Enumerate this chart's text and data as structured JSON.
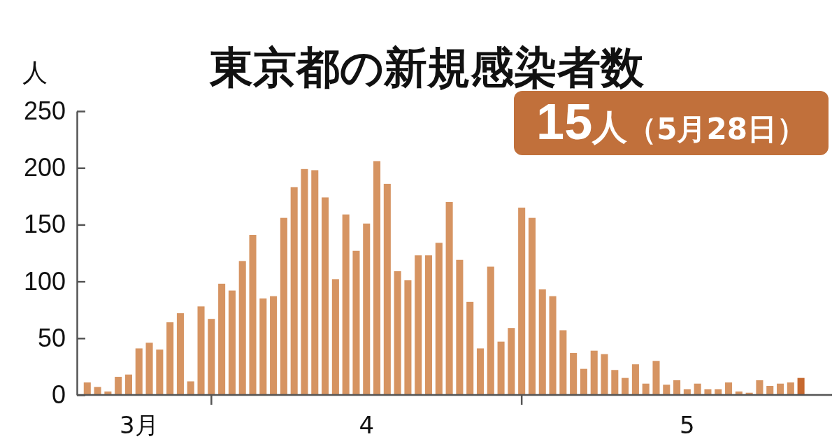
{
  "chart_data": {
    "type": "bar",
    "title": "東京都の新規感染者数",
    "ylabel": "人",
    "x": [
      "--03-20",
      "--03-21",
      "--03-22",
      "--03-23",
      "--03-24",
      "--03-25",
      "--03-26",
      "--03-27",
      "--03-28",
      "--03-29",
      "--03-30",
      "--03-31",
      "--04-01",
      "--04-02",
      "--04-03",
      "--04-04",
      "--04-05",
      "--04-06",
      "--04-07",
      "--04-08",
      "--04-09",
      "--04-10",
      "--04-11",
      "--04-12",
      "--04-13",
      "--04-14",
      "--04-15",
      "--04-16",
      "--04-17",
      "--04-18",
      "--04-19",
      "--04-20",
      "--04-21",
      "--04-22",
      "--04-23",
      "--04-24",
      "--04-25",
      "--04-26",
      "--04-27",
      "--04-28",
      "--04-29",
      "--04-30",
      "--05-01",
      "--05-02",
      "--05-03",
      "--05-04",
      "--05-05",
      "--05-06",
      "--05-07",
      "--05-08",
      "--05-09",
      "--05-10",
      "--05-11",
      "--05-12",
      "--05-13",
      "--05-14",
      "--05-15",
      "--05-16",
      "--05-17",
      "--05-18",
      "--05-19",
      "--05-20",
      "--05-21",
      "--05-22",
      "--05-23",
      "--05-24",
      "--05-25",
      "--05-26",
      "--05-27",
      "--05-28"
    ],
    "values": [
      11,
      7,
      3,
      16,
      18,
      41,
      46,
      40,
      64,
      72,
      12,
      78,
      67,
      98,
      92,
      118,
      141,
      85,
      87,
      156,
      183,
      199,
      198,
      174,
      102,
      159,
      127,
      151,
      206,
      186,
      109,
      101,
      123,
      123,
      134,
      170,
      119,
      82,
      41,
      113,
      47,
      59,
      165,
      156,
      93,
      87,
      57,
      37,
      23,
      39,
      36,
      22,
      15,
      27,
      10,
      30,
      9,
      13,
      5,
      10,
      5,
      5,
      11,
      3,
      2,
      13,
      8,
      10,
      11,
      15
    ],
    "colors": [
      "#d69462",
      "#d69462",
      "#d69462",
      "#d69462",
      "#d69462",
      "#d69462",
      "#d69462",
      "#d69462",
      "#d69462",
      "#d69462",
      "#d69462",
      "#d69462",
      "#d69462",
      "#d69462",
      "#d69462",
      "#d69462",
      "#d69462",
      "#d69462",
      "#d69462",
      "#d69462",
      "#d69462",
      "#d69462",
      "#d69462",
      "#d69462",
      "#d69462",
      "#d69462",
      "#d69462",
      "#d69462",
      "#d69462",
      "#d69462",
      "#d69462",
      "#d69462",
      "#d69462",
      "#d69462",
      "#d69462",
      "#d69462",
      "#d69462",
      "#d69462",
      "#d69462",
      "#d69462",
      "#d69462",
      "#d69462",
      "#d69462",
      "#d69462",
      "#d69462",
      "#d69462",
      "#d69462",
      "#d69462",
      "#d69462",
      "#d69462",
      "#d69462",
      "#d69462",
      "#d69462",
      "#d69462",
      "#d69462",
      "#d69462",
      "#d69462",
      "#d69462",
      "#d69462",
      "#d69462",
      "#d69462",
      "#d69462",
      "#d69462",
      "#d69462",
      "#d69462",
      "#d69462",
      "#d69462",
      "#d69462",
      "#d69462",
      "#c6692f"
    ],
    "xlim": [
      "--03-19",
      "--05-31"
    ],
    "xticks": [
      {
        "value": "--03-25",
        "label": "3月"
      },
      {
        "value": "--04-01",
        "label": null
      },
      {
        "value": "--04-16",
        "label": "4"
      },
      {
        "value": "--05-01",
        "label": null
      },
      {
        "value": "--05-17",
        "label": "5"
      }
    ],
    "ylim": [
      0,
      250
    ],
    "yticks": [
      0,
      50,
      100,
      150,
      200,
      250
    ],
    "annotations": [
      "15人（5月28日）"
    ]
  }
}
